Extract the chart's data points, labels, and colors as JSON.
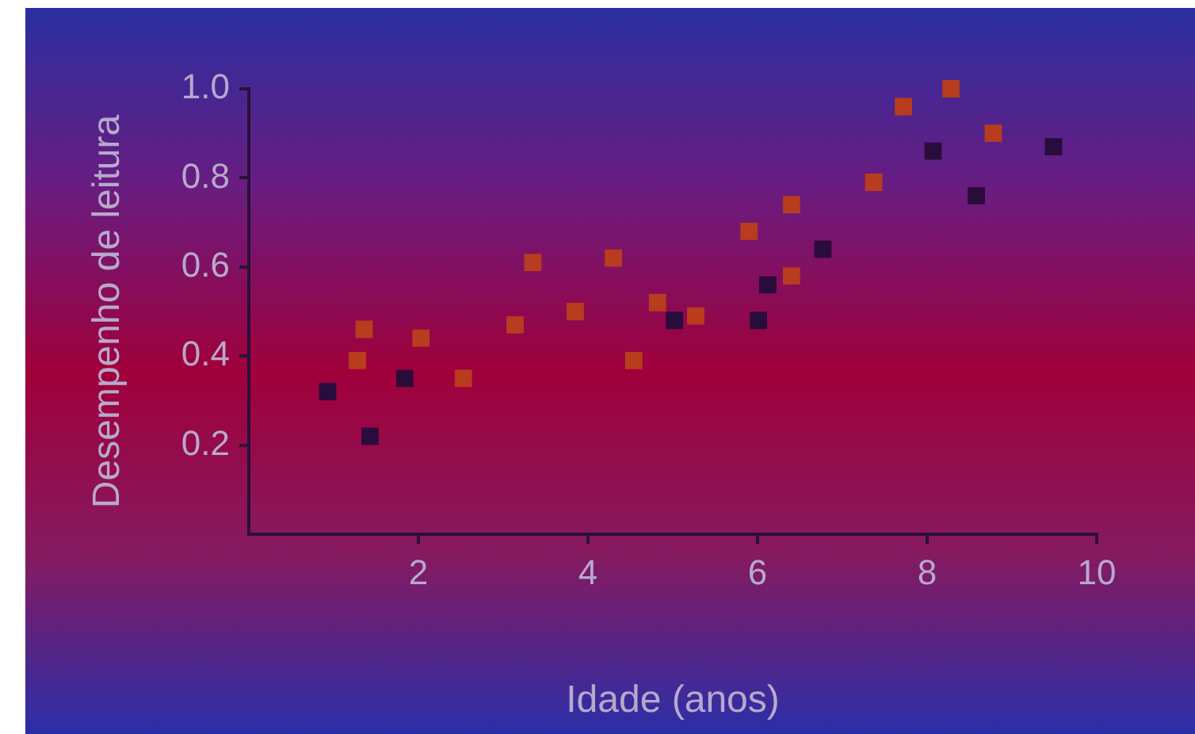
{
  "chart_data": {
    "type": "scatter",
    "xlabel": "Idade (anos)",
    "ylabel": "Desempenho de leitura",
    "marker": "square",
    "grid": false,
    "legend": false,
    "xlim": [
      0,
      10
    ],
    "xticks": [
      2,
      4,
      6,
      8,
      10
    ],
    "ylim": [
      0,
      1.0
    ],
    "yticks": [
      0.2,
      0.4,
      0.6,
      0.8,
      {
        "value": 1,
        "label": "1.0"
      }
    ],
    "series": [
      {
        "color": "#2a0c3c",
        "x": [
          0.93,
          1.43,
          1.84,
          5.02,
          6.01,
          6.12,
          6.77,
          8.07,
          8.58,
          9.49
        ],
        "values": [
          0.32,
          0.22,
          0.35,
          0.48,
          0.48,
          0.56,
          0.64,
          0.86,
          0.76,
          0.87
        ]
      },
      {
        "color": "#b83c1e",
        "x": [
          1.28,
          1.36,
          2.03,
          2.53,
          3.14,
          3.35,
          3.85,
          4.3,
          4.54,
          4.82,
          5.27,
          5.9,
          6.4,
          6.4,
          7.37,
          7.72,
          8.28,
          8.78
        ],
        "values": [
          0.39,
          0.46,
          0.44,
          0.35,
          0.47,
          0.61,
          0.5,
          0.62,
          0.39,
          0.52,
          0.49,
          0.68,
          0.74,
          0.58,
          0.79,
          0.96,
          1.0,
          0.9
        ]
      }
    ]
  }
}
